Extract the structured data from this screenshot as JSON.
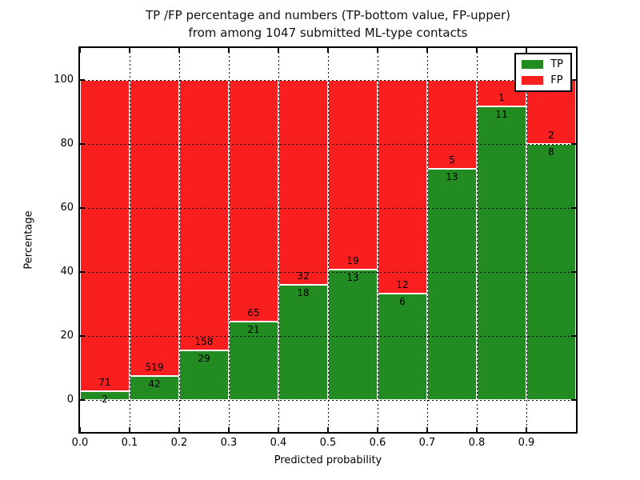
{
  "figure": {
    "title_line1": "TP /FP percentage and numbers (TP-bottom value, FP-upper)",
    "title_line2": "from among 1047 submitted ML-type contacts"
  },
  "chart_data": {
    "type": "bar",
    "stacked": true,
    "normalized_to_percent": true,
    "title": "TP /FP percentage and numbers (TP-bottom value, FP-upper)\nfrom among 1047 submitted ML-type contacts",
    "total_contacts": 1047,
    "xlabel": "Predicted probability",
    "ylabel": "Percentage",
    "xlim": [
      0,
      1
    ],
    "ylim": [
      -10,
      110
    ],
    "xticks": [
      0.0,
      0.1,
      0.2,
      0.3,
      0.4,
      0.5,
      0.6,
      0.7,
      0.8,
      0.9
    ],
    "xtick_labels": [
      "0.0",
      "0.1",
      "0.2",
      "0.3",
      "0.4",
      "0.5",
      "0.6",
      "0.7",
      "0.8",
      "0.9"
    ],
    "yticks": [
      0,
      20,
      40,
      60,
      80,
      100
    ],
    "ytick_labels": [
      "0",
      "20",
      "40",
      "60",
      "80",
      "100"
    ],
    "grid": "dotted",
    "bin_width": 0.1,
    "bins": [
      {
        "x0": 0.0,
        "x1": 0.1,
        "tp": 2,
        "fp": 71,
        "tp_pct": 2.74
      },
      {
        "x0": 0.1,
        "x1": 0.2,
        "tp": 42,
        "fp": 519,
        "tp_pct": 7.49
      },
      {
        "x0": 0.2,
        "x1": 0.3,
        "tp": 29,
        "fp": 158,
        "tp_pct": 15.51
      },
      {
        "x0": 0.3,
        "x1": 0.4,
        "tp": 21,
        "fp": 65,
        "tp_pct": 24.42
      },
      {
        "x0": 0.4,
        "x1": 0.5,
        "tp": 18,
        "fp": 32,
        "tp_pct": 36.0
      },
      {
        "x0": 0.5,
        "x1": 0.6,
        "tp": 13,
        "fp": 19,
        "tp_pct": 40.63
      },
      {
        "x0": 0.6,
        "x1": 0.7,
        "tp": 6,
        "fp": 12,
        "tp_pct": 33.33
      },
      {
        "x0": 0.7,
        "x1": 0.8,
        "tp": 13,
        "fp": 5,
        "tp_pct": 72.22
      },
      {
        "x0": 0.8,
        "x1": 0.9,
        "tp": 11,
        "fp": 1,
        "tp_pct": 91.67
      },
      {
        "x0": 0.9,
        "x1": 1.0,
        "tp": 8,
        "fp": 2,
        "tp_pct": 80.0
      }
    ],
    "series": [
      {
        "name": "TP",
        "color": "#228B22",
        "counts": [
          2,
          42,
          29,
          21,
          18,
          13,
          6,
          13,
          11,
          8
        ]
      },
      {
        "name": "FP",
        "color": "#FA1F1F",
        "counts": [
          71,
          519,
          158,
          65,
          32,
          19,
          12,
          5,
          1,
          2
        ]
      }
    ],
    "legend": {
      "position": "upper-right",
      "entries": [
        {
          "label": "TP",
          "color": "#228B22"
        },
        {
          "label": "FP",
          "color": "#FA1F1F"
        }
      ]
    }
  }
}
